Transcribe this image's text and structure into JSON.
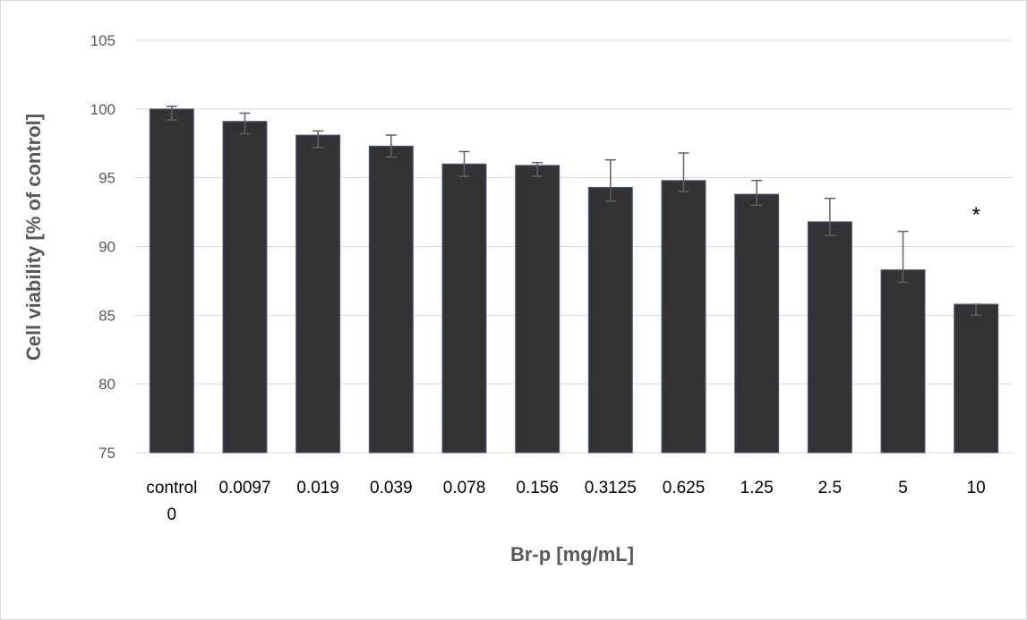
{
  "chart_data": {
    "type": "bar",
    "title": "",
    "xlabel": "Br-p [mg/mL]",
    "ylabel": "Cell viability [% of control]",
    "ylim": [
      75,
      105
    ],
    "yticks": [
      75,
      80,
      85,
      90,
      95,
      100,
      105
    ],
    "grid": true,
    "legend": "none",
    "categories": [
      "control\n0",
      "0.0097",
      "0.019",
      "0.039",
      "0.078",
      "0.156",
      "0.3125",
      "0.625",
      "1.25",
      "2.5",
      "5",
      "10"
    ],
    "values": [
      100.0,
      99.1,
      98.1,
      97.3,
      96.0,
      95.9,
      94.3,
      94.8,
      93.8,
      91.8,
      88.3,
      85.8
    ],
    "error_plus": [
      0.2,
      0.6,
      0.3,
      0.8,
      0.9,
      0.2,
      2.0,
      2.0,
      1.0,
      1.7,
      2.8,
      0.0
    ],
    "error_minus": [
      0.8,
      0.9,
      0.9,
      0.8,
      0.9,
      0.8,
      1.0,
      0.8,
      0.8,
      1.0,
      0.9,
      0.8
    ],
    "annotations": [
      {
        "category_index": 11,
        "text": "*"
      }
    ],
    "colors": {
      "bar": "#333333",
      "bar_edge": "#4a5d8c",
      "error": "#606060",
      "grid": "#d9d9d9"
    }
  }
}
